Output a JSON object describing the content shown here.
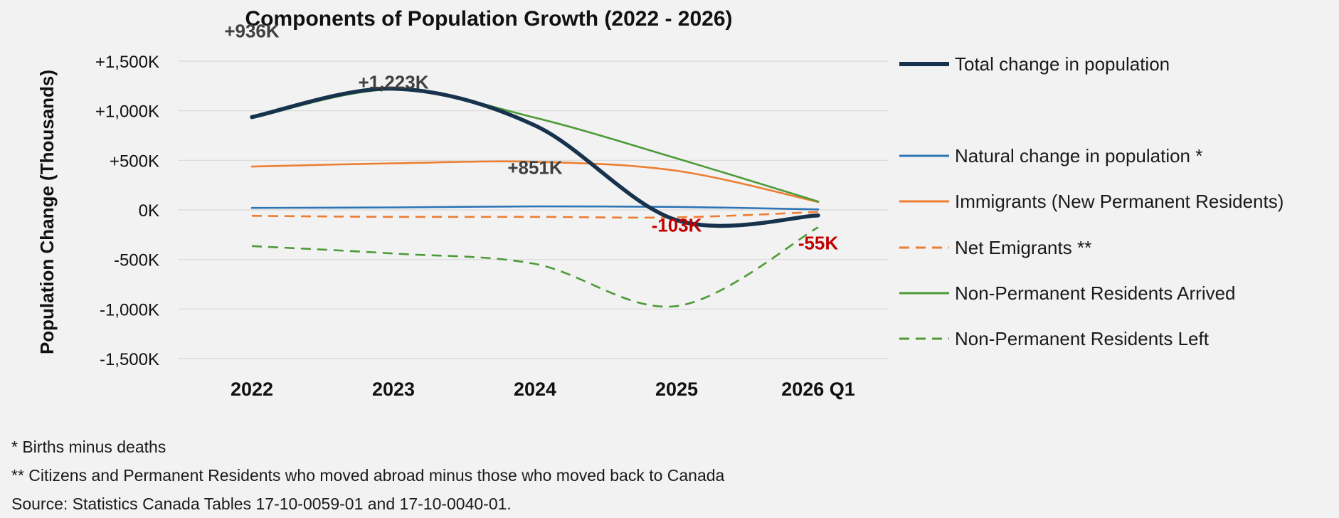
{
  "chart_data": {
    "type": "line",
    "title": "Components of Population Growth (2022 - 2026)",
    "ylabel": "Population Change (Thousands)",
    "xlabel": "",
    "categories": [
      "2022",
      "2023",
      "2024",
      "2025",
      "2026 Q1"
    ],
    "ylim": [
      -1500,
      1500
    ],
    "yticks": [
      1500,
      1000,
      500,
      0,
      -500,
      -1000,
      -1500
    ],
    "ytick_labels": [
      "+1,500K",
      "+1,000K",
      "+500K",
      "0K",
      "-500K",
      "-1,000K",
      "-1,500K"
    ],
    "grid": true,
    "legend_position": "right",
    "series": [
      {
        "name": "Total change in population",
        "values": [
          936,
          1223,
          851,
          -103,
          -55
        ],
        "color": "#17324d",
        "dash": "solid",
        "width": 5.5
      },
      {
        "name": "Natural change in population *",
        "values": [
          20,
          25,
          35,
          30,
          5
        ],
        "color": "#2e75b6",
        "dash": "solid",
        "width": 2.6
      },
      {
        "name": "Immigrants (New Permanent Residents)",
        "values": [
          437,
          470,
          485,
          395,
          80
        ],
        "color": "#ed7d31",
        "dash": "solid",
        "width": 2.6
      },
      {
        "name": "Net Emigrants **",
        "values": [
          -60,
          -70,
          -70,
          -75,
          -20
        ],
        "color": "#ed7d31",
        "dash": "dashed",
        "width": 2.6
      },
      {
        "name": "Non-Permanent Residents Arrived",
        "values": [
          925,
          1215,
          930,
          520,
          85
        ],
        "color": "#4d9a38",
        "dash": "solid",
        "width": 2.6
      },
      {
        "name": "Non-Permanent Residents Left",
        "values": [
          -365,
          -440,
          -545,
          -970,
          -175
        ],
        "color": "#4d9a38",
        "dash": "dashed",
        "width": 2.6
      }
    ],
    "data_labels": [
      {
        "series": "Total change in population",
        "index": 0,
        "text": "+936K",
        "color": "#404040"
      },
      {
        "series": "Total change in population",
        "index": 1,
        "text": "+1,223K",
        "color": "#404040"
      },
      {
        "series": "Total change in population",
        "index": 2,
        "text": "+851K",
        "color": "#404040"
      },
      {
        "series": "Total change in population",
        "index": 3,
        "text": "-103K",
        "color": "#c00000"
      },
      {
        "series": "Total change in population",
        "index": 4,
        "text": "-55K",
        "color": "#c00000"
      }
    ]
  },
  "footnotes": {
    "note1": "* Births minus deaths",
    "note2": "** Citizens and Permanent Residents who moved abroad minus those who moved back to Canada",
    "source": "Source: Statistics Canada Tables 17-10-0059-01  and  17-10-0040-01."
  }
}
